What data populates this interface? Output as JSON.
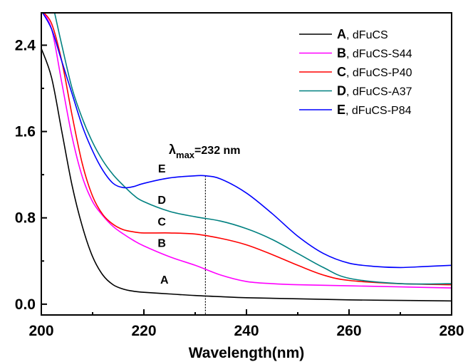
{
  "chart_data": {
    "type": "line",
    "xlabel": "Wavelength(nm)",
    "ylabel": "",
    "xlim": [
      200,
      280
    ],
    "ylim": [
      -0.1,
      2.7
    ],
    "xticks": [
      200,
      220,
      240,
      260,
      280
    ],
    "xtick_labels": [
      "200",
      "220",
      "240",
      "260",
      "280"
    ],
    "yticks": [
      0.0,
      0.8,
      1.6,
      2.4
    ],
    "ytick_labels": [
      "0.0",
      "0.8",
      "1.6",
      "2.4"
    ],
    "grid": false,
    "legend_position": "top-right",
    "series": [
      {
        "name": "dFuCS",
        "key": "A",
        "color": "#000000",
        "x": [
          200,
          202,
          204,
          206,
          208,
          210,
          212,
          214,
          216,
          218,
          220,
          225,
          230,
          235,
          240,
          250,
          260,
          270,
          280
        ],
        "y": [
          2.37,
          2.1,
          1.6,
          1.1,
          0.72,
          0.44,
          0.27,
          0.18,
          0.14,
          0.12,
          0.11,
          0.095,
          0.08,
          0.07,
          0.06,
          0.05,
          0.04,
          0.035,
          0.03
        ]
      },
      {
        "name": "dFuCS-S44",
        "key": "B",
        "color": "#ff00ff",
        "x": [
          200,
          202,
          204,
          206,
          208,
          210,
          212,
          214,
          216,
          218,
          220,
          225,
          230,
          235,
          240,
          245,
          250,
          260,
          270,
          280
        ],
        "y": [
          2.72,
          2.55,
          2.05,
          1.55,
          1.18,
          0.95,
          0.82,
          0.72,
          0.65,
          0.59,
          0.54,
          0.44,
          0.36,
          0.27,
          0.21,
          0.19,
          0.18,
          0.17,
          0.16,
          0.15
        ]
      },
      {
        "name": "dFuCS-P40",
        "key": "C",
        "color": "#ff0000",
        "x": [
          200,
          202,
          204,
          206,
          208,
          210,
          212,
          214,
          216,
          218,
          220,
          225,
          230,
          235,
          240,
          245,
          250,
          255,
          260,
          270,
          280
        ],
        "y": [
          2.72,
          2.6,
          2.25,
          1.75,
          1.3,
          1.0,
          0.83,
          0.74,
          0.69,
          0.67,
          0.66,
          0.66,
          0.65,
          0.61,
          0.55,
          0.46,
          0.36,
          0.27,
          0.22,
          0.19,
          0.18
        ]
      },
      {
        "name": "dFuCS-A37",
        "key": "D",
        "color": "#008080",
        "x": [
          202.5,
          204,
          206,
          208,
          210,
          212,
          214,
          216,
          218,
          220,
          225,
          230,
          235,
          240,
          245,
          250,
          255,
          260,
          270,
          280
        ],
        "y": [
          2.72,
          2.4,
          2.0,
          1.72,
          1.5,
          1.33,
          1.2,
          1.1,
          1.01,
          0.95,
          0.86,
          0.81,
          0.77,
          0.7,
          0.6,
          0.47,
          0.34,
          0.24,
          0.19,
          0.19
        ]
      },
      {
        "name": "dFuCS-P84",
        "key": "E",
        "color": "#0000ff",
        "x": [
          200,
          202,
          204,
          206,
          208,
          210,
          212,
          214,
          216,
          218,
          220,
          225,
          230,
          232,
          235,
          240,
          245,
          250,
          255,
          260,
          265,
          270,
          275,
          280
        ],
        "y": [
          2.72,
          2.55,
          2.25,
          1.95,
          1.65,
          1.42,
          1.24,
          1.12,
          1.08,
          1.09,
          1.12,
          1.17,
          1.19,
          1.19,
          1.16,
          1.03,
          0.84,
          0.63,
          0.47,
          0.38,
          0.35,
          0.34,
          0.35,
          0.36
        ]
      }
    ],
    "curve_labels": [
      {
        "text": "A",
        "x": 224,
        "y": 0.19
      },
      {
        "text": "B",
        "x": 223.5,
        "y": 0.53
      },
      {
        "text": "C",
        "x": 223.5,
        "y": 0.73
      },
      {
        "text": "D",
        "x": 223.5,
        "y": 0.93
      },
      {
        "text": "E",
        "x": 223.5,
        "y": 1.22
      }
    ],
    "annotation": {
      "lambda": "λ",
      "sub": "max",
      "text": "=232 nm",
      "x": 232
    }
  }
}
